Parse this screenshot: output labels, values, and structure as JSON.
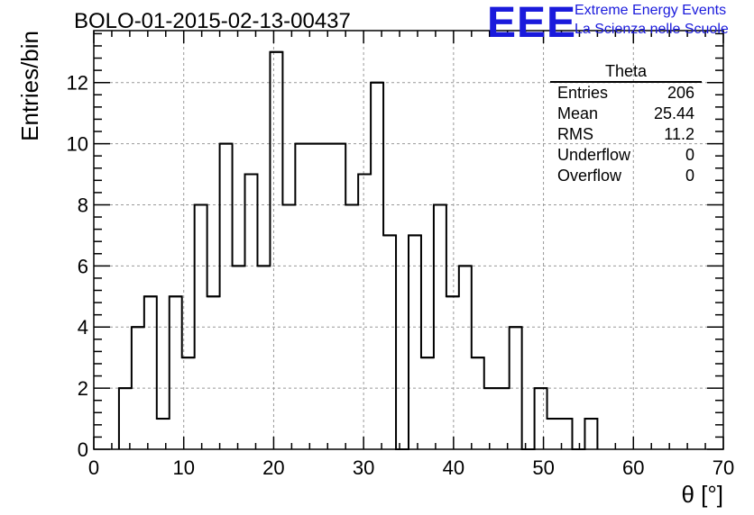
{
  "title": "BOLO-01-2015-02-13-00437",
  "logo": {
    "text": "EEE",
    "line1": "Extreme Energy Events",
    "line2": "La Scienza nelle Scuole",
    "color": "#1a1adc"
  },
  "stats": {
    "name": "Theta",
    "rows": [
      {
        "label": "Entries",
        "value": "206"
      },
      {
        "label": "Mean",
        "value": "25.44"
      },
      {
        "label": "RMS",
        "value": "11.2"
      },
      {
        "label": "Underflow",
        "value": "0"
      },
      {
        "label": "Overflow",
        "value": "0"
      }
    ]
  },
  "chart_data": {
    "type": "bar",
    "title": "BOLO-01-2015-02-13-00437",
    "xlabel": "θ [°]",
    "ylabel": "Entries/bin",
    "xlim": [
      0,
      70
    ],
    "ylim": [
      0,
      13.7
    ],
    "x_ticks": [
      0,
      10,
      20,
      30,
      40,
      50,
      60,
      70
    ],
    "y_ticks": [
      0,
      2,
      4,
      6,
      8,
      10,
      12
    ],
    "grid": true,
    "bin_width": 1.4,
    "bin_lo_edges": [
      2.8,
      4.2,
      5.6,
      7.0,
      8.4,
      9.8,
      11.2,
      12.6,
      14.0,
      15.4,
      16.8,
      18.2,
      19.6,
      21.0,
      22.4,
      23.8,
      25.2,
      26.6,
      28.0,
      29.4,
      30.8,
      32.2,
      33.6,
      35.0,
      36.4,
      37.8,
      39.2,
      40.6,
      42.0,
      43.4,
      44.8,
      46.2,
      47.6,
      49.0,
      50.4,
      51.8,
      53.2,
      54.6
    ],
    "values": [
      2,
      4,
      5,
      1,
      5,
      3,
      8,
      5,
      10,
      6,
      9,
      6,
      13,
      8,
      10,
      10,
      10,
      10,
      8,
      9,
      12,
      7,
      0,
      7,
      3,
      8,
      5,
      6,
      3,
      2,
      2,
      4,
      0,
      2,
      1,
      1,
      0,
      1
    ],
    "line_color": "#000000",
    "grid_color": "#999999"
  }
}
